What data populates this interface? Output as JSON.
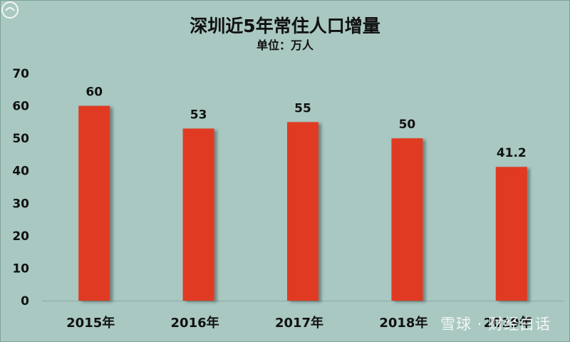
{
  "chart_data": {
    "type": "bar",
    "title": "深圳近5年常住人口增量",
    "subtitle": "单位：万人",
    "categories": [
      "2015年",
      "2016年",
      "2017年",
      "2018年",
      "2019年"
    ],
    "values": [
      60,
      53,
      55,
      50,
      41.2
    ],
    "data_labels": [
      "60",
      "53",
      "55",
      "50",
      "41.2"
    ],
    "ylim": [
      0,
      70
    ],
    "yticks": [
      0,
      10,
      20,
      30,
      40,
      50,
      60,
      70
    ],
    "xlabel": "",
    "ylabel": "",
    "grid": false,
    "legend": "none",
    "bar_color": "#e03a24",
    "background_color": "#a9c8c1"
  },
  "watermark": {
    "text": "雪球 · 财经白话"
  }
}
